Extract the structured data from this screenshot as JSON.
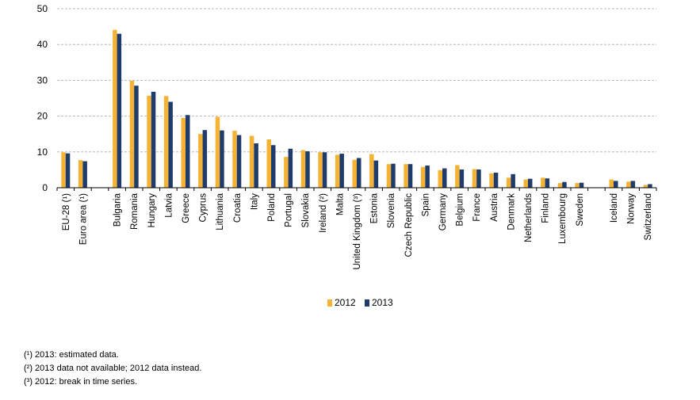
{
  "chart_data": {
    "type": "bar",
    "categories": [
      "EU-28 (¹)",
      "Euro area (¹)",
      "",
      "Bulgaria",
      "Romania",
      "Hungary",
      "Latvia",
      "Greece",
      "Cyprus",
      "Lithuania",
      "Croatia",
      "Italy",
      "Poland",
      "Portugal",
      "Slovakia",
      "Ireland (²)",
      "Malta",
      "United Kingdom (³)",
      "Estonia",
      "Slovenia",
      "Czech Republic",
      "Spain",
      "Germany",
      "Belgium",
      "France",
      "Austria",
      "Denmark",
      "Netherlands",
      "Finland",
      "Luxembourg",
      "Sweden",
      "",
      "Iceland",
      "Norway",
      "Switzerland"
    ],
    "series": [
      {
        "name": "2012",
        "color": "#f5b335",
        "values": [
          9.9,
          7.7,
          null,
          44.1,
          29.9,
          25.7,
          25.6,
          19.5,
          15.0,
          19.8,
          15.9,
          14.5,
          13.5,
          8.6,
          10.5,
          9.9,
          9.2,
          7.8,
          9.4,
          6.6,
          6.6,
          5.8,
          4.9,
          6.3,
          5.2,
          4.0,
          2.8,
          2.3,
          2.8,
          1.3,
          1.3,
          null,
          2.3,
          1.7,
          0.8
        ]
      },
      {
        "name": "2013",
        "color": "#1f3c6d",
        "values": [
          9.6,
          7.4,
          null,
          43.0,
          28.5,
          26.8,
          24.0,
          20.3,
          16.1,
          16.0,
          14.7,
          12.4,
          11.9,
          10.9,
          10.2,
          9.9,
          9.5,
          8.3,
          7.6,
          6.7,
          6.6,
          6.2,
          5.4,
          5.1,
          5.1,
          4.2,
          3.8,
          2.5,
          2.6,
          1.6,
          1.4,
          null,
          1.9,
          1.9,
          1.0
        ]
      }
    ],
    "ylim": [
      0,
      50
    ],
    "yticks": [
      0,
      10,
      20,
      30,
      40,
      50
    ],
    "grid": true,
    "legend_position": "bottom-center"
  },
  "footnotes": [
    "(¹) 2013: estimated data.",
    "(²) 2013 data not available; 2012 data instead.",
    "(³) 2012: break in time series."
  ]
}
